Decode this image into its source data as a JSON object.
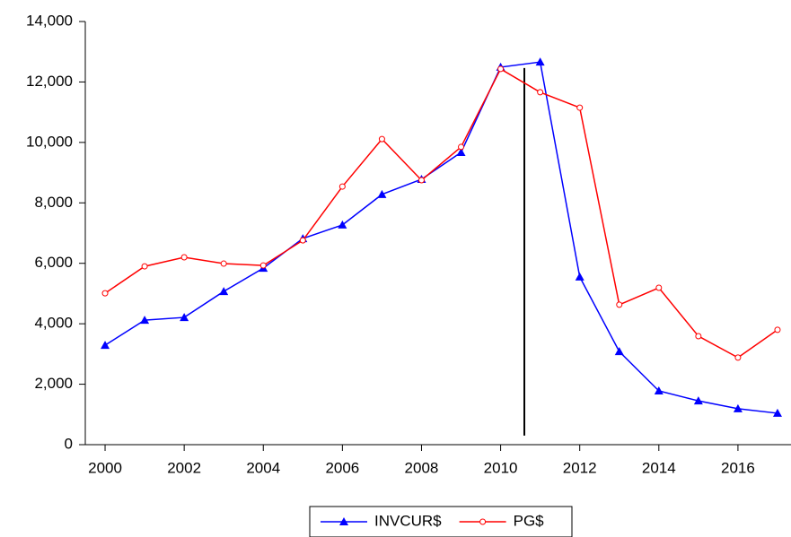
{
  "chart_data": {
    "type": "line",
    "x": [
      2000,
      2001,
      2002,
      2003,
      2004,
      2005,
      2006,
      2007,
      2008,
      2009,
      2010,
      2011,
      2012,
      2013,
      2014,
      2015,
      2016,
      2017
    ],
    "series": [
      {
        "name": "INVCUR$",
        "color": "#0000ff",
        "marker": "triangle",
        "values": [
          3290,
          4120,
          4210,
          5070,
          5840,
          6820,
          7270,
          8280,
          8780,
          9670,
          12490,
          12660,
          5550,
          3080,
          1780,
          1450,
          1190,
          1040
        ]
      },
      {
        "name": "PG$",
        "color": "#ff0000",
        "marker": "circle",
        "values": [
          5010,
          5900,
          6200,
          5990,
          5930,
          6760,
          8540,
          10110,
          8750,
          9850,
          12430,
          11660,
          11150,
          4630,
          5190,
          3590,
          2880,
          3800
        ]
      }
    ],
    "xlim": [
      1999.5,
      2017.5
    ],
    "xticks": [
      2000,
      2002,
      2004,
      2006,
      2008,
      2010,
      2012,
      2014,
      2016
    ],
    "ylim": [
      0,
      14000
    ],
    "yticks": [
      0,
      {
        "value": 2000,
        "label": "2,000"
      },
      {
        "value": 4000,
        "label": "4,000"
      },
      {
        "value": 6000,
        "label": "6,000"
      },
      {
        "value": 8000,
        "label": "8,000"
      },
      {
        "value": 10000,
        "label": "10,000"
      },
      {
        "value": 12000,
        "label": "12,000"
      },
      {
        "value": 14000,
        "label": "14,000"
      }
    ],
    "vertical_line": {
      "x": 2010.6,
      "y": [
        300,
        12460
      ],
      "color": "#000000"
    },
    "legend": "bottom"
  }
}
